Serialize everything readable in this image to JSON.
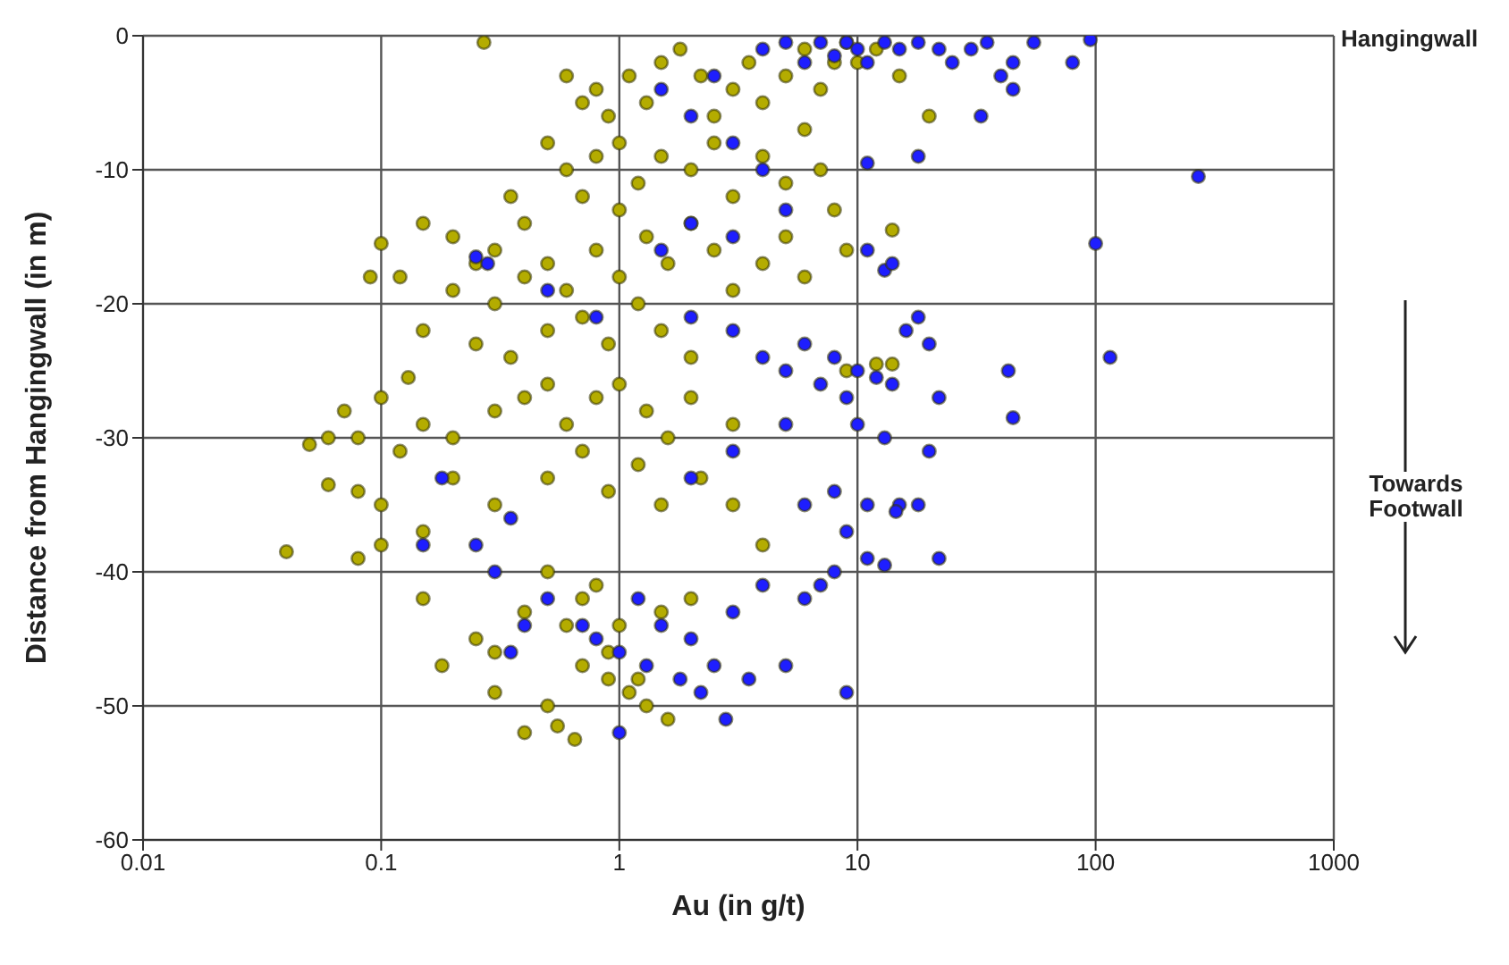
{
  "chart_data": {
    "type": "scatter",
    "xlabel": "Au (in g/t)",
    "ylabel": "Distance from Hangingwall (in m)",
    "annotations": [
      "Hangingwall",
      "Towards Footwall"
    ],
    "log": "x",
    "grid": true,
    "marker": "circle",
    "xlim": [
      0.01,
      1000
    ],
    "xticks": [
      0.01,
      0.1,
      1,
      10,
      100,
      1000
    ],
    "ylim": [
      -60,
      0
    ],
    "yticks": [
      -60,
      -50,
      -40,
      -30,
      -20,
      -10,
      0
    ],
    "series": [
      {
        "color": "#b4ac00",
        "x": [
          0.27,
          0.6,
          0.7,
          0.8,
          0.9,
          1.1,
          1.3,
          1.5,
          1.8,
          2.2,
          2.5,
          3,
          3.5,
          4,
          5,
          6,
          7,
          8,
          9,
          10,
          12,
          15,
          20,
          0.5,
          0.6,
          0.8,
          1,
          1.2,
          1.5,
          2,
          2.5,
          3,
          4,
          5,
          6,
          7,
          8,
          1,
          0.7,
          0.4,
          0.35,
          14,
          0.3,
          0.2,
          0.15,
          0.1,
          0.12,
          0.09,
          0.2,
          0.25,
          0.3,
          0.4,
          0.5,
          0.6,
          0.8,
          1,
          1.3,
          1.6,
          2,
          2.5,
          3,
          4,
          5,
          6,
          9,
          0.5,
          0.7,
          0.9,
          1.2,
          1.5,
          2,
          0.35,
          0.25,
          0.15,
          0.13,
          0.1,
          0.07,
          0.06,
          0.05,
          0.06,
          0.08,
          0.08,
          0.12,
          0.15,
          0.2,
          0.3,
          0.4,
          0.5,
          0.6,
          0.8,
          1,
          1.3,
          1.6,
          2,
          3,
          9,
          12,
          14,
          0.1,
          0.2,
          0.3,
          0.5,
          0.7,
          0.9,
          1.2,
          1.5,
          2.2,
          3,
          4,
          0.04,
          0.08,
          0.1,
          0.15,
          0.15,
          0.18,
          0.25,
          0.3,
          0.4,
          0.5,
          0.6,
          0.7,
          0.8,
          0.9,
          1,
          1.2,
          1.5,
          2,
          0.4,
          0.5,
          0.55,
          0.65,
          0.9,
          1.1,
          1.3,
          1.6,
          0.7,
          0.3
        ],
        "values": [
          -0.5,
          -3,
          -5,
          -4,
          -6,
          -3,
          -5,
          -2,
          -1,
          -3,
          -6,
          -4,
          -2,
          -5,
          -3,
          -1,
          -4,
          -2,
          -0.5,
          -2,
          -1,
          -3,
          -6,
          -8,
          -10,
          -9,
          -8,
          -11,
          -9,
          -10,
          -8,
          -12,
          -9,
          -11,
          -7,
          -10,
          -13,
          -13,
          -12,
          -14,
          -12,
          -14.5,
          -16,
          -15,
          -14,
          -15.5,
          -18,
          -18,
          -19,
          -17,
          -20,
          -18,
          -17,
          -19,
          -16,
          -18,
          -15,
          -17,
          -14,
          -16,
          -19,
          -17,
          -15,
          -18,
          -16,
          -22,
          -21,
          -23,
          -20,
          -22,
          -24,
          -24,
          -23,
          -22,
          -25.5,
          -27,
          -28,
          -30,
          -30.5,
          -33.5,
          -30,
          -34,
          -31,
          -29,
          -30,
          -28,
          -27,
          -26,
          -29,
          -27,
          -26,
          -28,
          -30,
          -27,
          -29,
          -25,
          -24.5,
          -24.5,
          -35,
          -33,
          -35,
          -33,
          -31,
          -34,
          -32,
          -35,
          -33,
          -35,
          -38,
          -38.5,
          -39,
          -38,
          -37,
          -42,
          -47,
          -45,
          -46,
          -43,
          -40,
          -44,
          -42,
          -41,
          -46,
          -44,
          -48,
          -43,
          -42,
          -52,
          -50,
          -51.5,
          -52.5,
          -48,
          -49,
          -50,
          -51,
          -47,
          -49
        ]
      },
      {
        "color": "#1e1eff",
        "x": [
          1.5,
          2,
          2.5,
          3,
          4,
          5,
          6,
          7,
          8,
          9,
          10,
          11,
          13,
          15,
          18,
          22,
          25,
          30,
          35,
          40,
          45,
          55,
          80,
          95,
          33,
          45,
          11,
          18,
          270,
          100,
          11,
          13,
          14,
          5,
          4,
          2,
          1.5,
          3,
          0.25,
          0.28,
          0.8,
          0.5,
          2,
          3,
          4,
          5,
          6,
          7,
          8,
          9,
          10,
          12,
          14,
          16,
          18,
          20,
          22,
          43,
          115,
          45,
          20,
          13,
          10,
          5,
          3,
          2,
          6,
          8,
          11,
          15,
          18,
          9,
          11,
          13,
          22,
          8,
          7,
          6,
          4,
          3,
          2,
          1.5,
          1.2,
          1,
          0.8,
          0.7,
          0.5,
          0.4,
          0.35,
          0.3,
          0.25,
          0.15,
          0.18,
          0.35,
          2.5,
          3.5,
          5,
          1.8,
          2.2,
          1,
          2.8,
          9,
          1.3,
          14.5
        ],
        "values": [
          -4,
          -6,
          -3,
          -8,
          -1,
          -0.5,
          -2,
          -0.5,
          -1.5,
          -0.5,
          -1,
          -2,
          -0.5,
          -1,
          -0.5,
          -1,
          -2,
          -1,
          -0.5,
          -3,
          -2,
          -0.5,
          -2,
          -0.3,
          -6,
          -4,
          -9.5,
          -9,
          -10.5,
          -15.5,
          -16,
          -17.5,
          -17,
          -13,
          -10,
          -14,
          -16,
          -15,
          -16.5,
          -17,
          -21,
          -19,
          -21,
          -22,
          -24,
          -25,
          -23,
          -26,
          -24,
          -27,
          -25,
          -25.5,
          -26,
          -22,
          -21,
          -23,
          -27,
          -25,
          -24,
          -28.5,
          -31,
          -30,
          -29,
          -29,
          -31,
          -33,
          -35,
          -34,
          -35,
          -35,
          -35,
          -37,
          -39,
          -39.5,
          -39,
          -40,
          -41,
          -42,
          -41,
          -43,
          -45,
          -44,
          -42,
          -46,
          -45,
          -44,
          -42,
          -44,
          -46,
          -40,
          -38,
          -38,
          -33,
          -36,
          -47,
          -48,
          -47,
          -48,
          -49,
          -52,
          -51,
          -49,
          -47,
          -35.5
        ]
      }
    ]
  }
}
